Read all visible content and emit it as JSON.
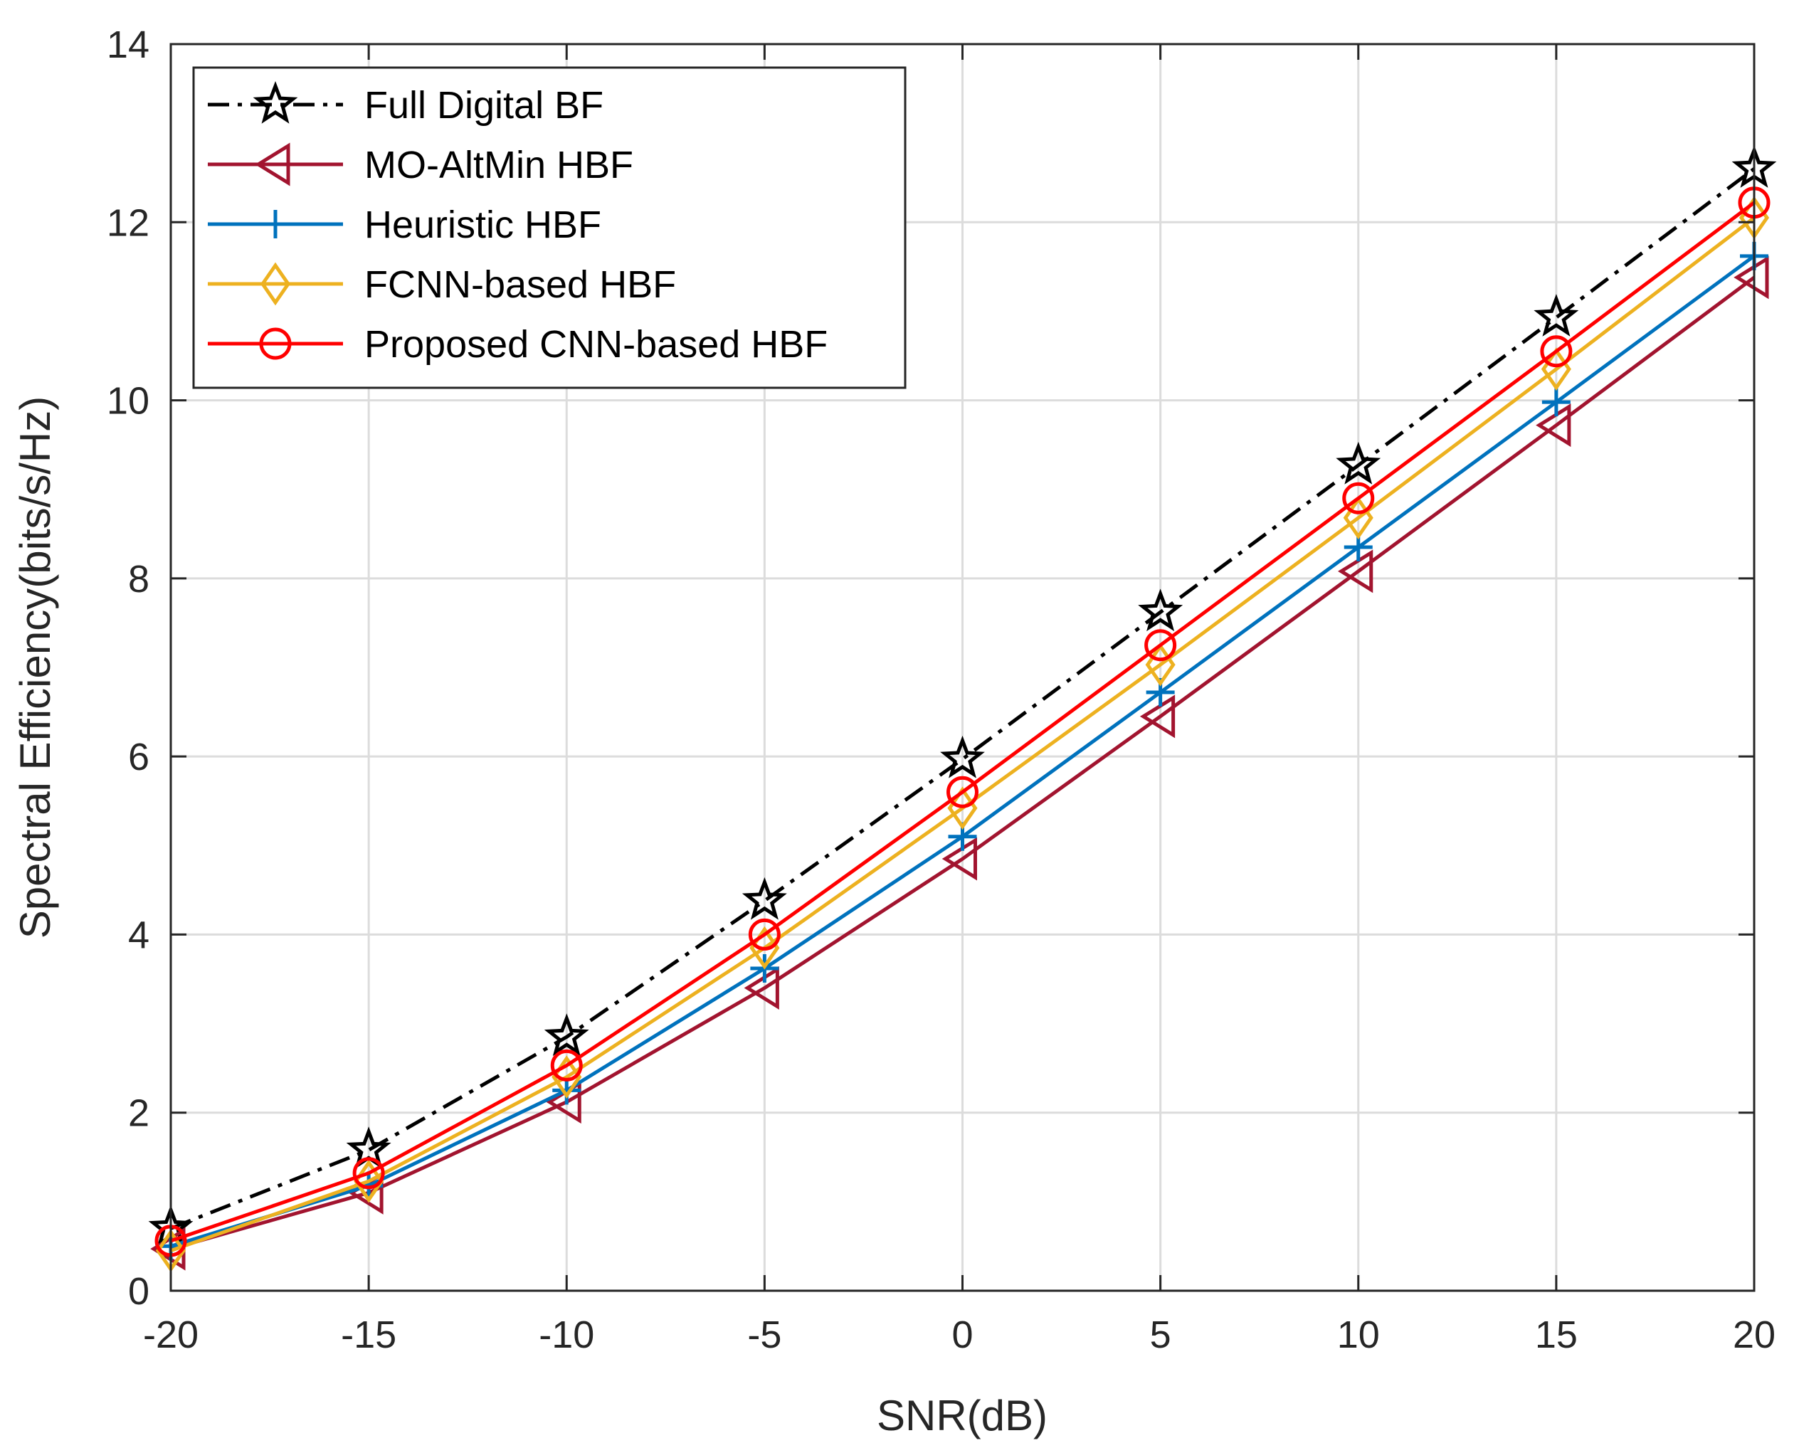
{
  "chart_data": {
    "type": "line",
    "title": "",
    "xlabel": "SNR(dB)",
    "ylabel": "Spectral Efficiency(bits/s/Hz)",
    "x": [
      -20,
      -15,
      -10,
      -5,
      0,
      5,
      10,
      15,
      20
    ],
    "xlim": [
      -20,
      20
    ],
    "ylim": [
      0,
      14
    ],
    "xticks": [
      -20,
      -15,
      -10,
      -5,
      0,
      5,
      10,
      15,
      20
    ],
    "xtick_labels": [
      "-20",
      "-15",
      "-10",
      "-5",
      "0",
      "5",
      "10",
      "15",
      "20"
    ],
    "yticks": [
      0,
      2,
      4,
      6,
      8,
      10,
      12,
      14
    ],
    "ytick_labels": [
      "0",
      "2",
      "4",
      "6",
      "8",
      "10",
      "12",
      "14"
    ],
    "grid": true,
    "legend_position": "top-left",
    "series": [
      {
        "name": "Full Digital BF",
        "color": "#000000",
        "dash": "dash-dot",
        "marker": "star",
        "values": [
          0.7,
          1.58,
          2.85,
          4.38,
          5.97,
          7.62,
          9.27,
          10.93,
          12.6
        ]
      },
      {
        "name": "MO-AltMin HBF",
        "color": "#a2142f",
        "dash": "solid",
        "marker": "triangle-left",
        "values": [
          0.47,
          1.1,
          2.12,
          3.4,
          4.85,
          6.45,
          8.08,
          9.72,
          11.38
        ]
      },
      {
        "name": "Heuristic HBF",
        "color": "#0072bd",
        "dash": "solid",
        "marker": "plus",
        "values": [
          0.5,
          1.18,
          2.25,
          3.62,
          5.1,
          6.72,
          8.35,
          9.98,
          11.62
        ]
      },
      {
        "name": "FCNN-based HBF",
        "color": "#edb120",
        "dash": "solid",
        "marker": "diamond",
        "values": [
          0.45,
          1.23,
          2.4,
          3.85,
          5.42,
          7.03,
          8.68,
          10.35,
          12.05
        ]
      },
      {
        "name": "Proposed CNN-based HBF",
        "color": "#ff0000",
        "dash": "solid",
        "marker": "circle",
        "values": [
          0.56,
          1.32,
          2.53,
          4.0,
          5.6,
          7.25,
          8.9,
          10.55,
          12.22
        ]
      }
    ]
  }
}
